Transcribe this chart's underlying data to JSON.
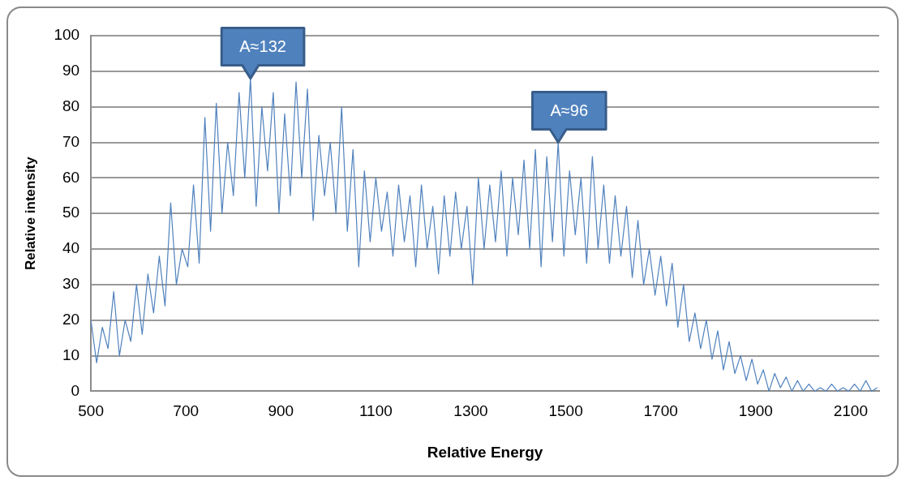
{
  "chart_data": {
    "type": "line",
    "xlabel": "Relative Energy",
    "ylabel": "Relative intensity",
    "xlim": [
      500,
      2160
    ],
    "xticks": [
      500,
      700,
      900,
      1100,
      1300,
      1500,
      1700,
      1900,
      2100
    ],
    "ylim": [
      0,
      100
    ],
    "yticks": [
      0,
      10,
      20,
      30,
      40,
      50,
      60,
      70,
      80,
      90,
      100
    ],
    "grid": "y",
    "legend": false,
    "marker": "none",
    "line_style": "solid",
    "annotations": [
      {
        "text": "A≈132",
        "x": 836,
        "y": 88
      },
      {
        "text": "A≈96",
        "x": 1484,
        "y": 70
      }
    ],
    "series": [
      {
        "color": "#4f81bd",
        "x": [
          500,
          512,
          524,
          536,
          548,
          560,
          572,
          584,
          596,
          608,
          620,
          632,
          644,
          656,
          668,
          680,
          692,
          704,
          716,
          728,
          740,
          752,
          764,
          776,
          788,
          800,
          812,
          824,
          836,
          848,
          860,
          872,
          884,
          896,
          908,
          920,
          932,
          944,
          956,
          968,
          980,
          992,
          1004,
          1016,
          1028,
          1040,
          1052,
          1064,
          1076,
          1088,
          1100,
          1112,
          1124,
          1136,
          1148,
          1160,
          1172,
          1184,
          1196,
          1208,
          1220,
          1232,
          1244,
          1256,
          1268,
          1280,
          1292,
          1304,
          1316,
          1328,
          1340,
          1352,
          1364,
          1376,
          1388,
          1400,
          1412,
          1424,
          1436,
          1448,
          1460,
          1472,
          1484,
          1496,
          1508,
          1520,
          1532,
          1544,
          1556,
          1568,
          1580,
          1592,
          1604,
          1616,
          1628,
          1640,
          1652,
          1664,
          1676,
          1688,
          1700,
          1712,
          1724,
          1736,
          1748,
          1760,
          1772,
          1784,
          1796,
          1808,
          1820,
          1832,
          1844,
          1856,
          1868,
          1880,
          1892,
          1904,
          1916,
          1928,
          1940,
          1952,
          1964,
          1976,
          1988,
          2000,
          2012,
          2024,
          2036,
          2048,
          2060,
          2072,
          2084,
          2096,
          2108,
          2120,
          2132,
          2144,
          2156
        ],
        "values": [
          20,
          8,
          18,
          12,
          28,
          10,
          20,
          14,
          30,
          16,
          33,
          22,
          38,
          24,
          53,
          30,
          40,
          35,
          58,
          36,
          77,
          45,
          81,
          50,
          70,
          55,
          84,
          60,
          88,
          52,
          80,
          62,
          84,
          50,
          78,
          55,
          87,
          60,
          85,
          48,
          72,
          55,
          70,
          50,
          80,
          45,
          68,
          35,
          62,
          42,
          60,
          45,
          56,
          38,
          58,
          42,
          55,
          35,
          58,
          40,
          52,
          33,
          55,
          38,
          56,
          40,
          52,
          30,
          60,
          40,
          58,
          42,
          62,
          38,
          60,
          44,
          65,
          40,
          68,
          35,
          66,
          42,
          70,
          38,
          62,
          44,
          60,
          36,
          66,
          40,
          58,
          36,
          55,
          38,
          52,
          32,
          48,
          30,
          40,
          27,
          38,
          24,
          36,
          18,
          30,
          14,
          22,
          12,
          20,
          9,
          17,
          6,
          14,
          5,
          10,
          3,
          9,
          2,
          6,
          0,
          5,
          1,
          4,
          0,
          3,
          0,
          2,
          0,
          1,
          0,
          2,
          0,
          1,
          0,
          2,
          0,
          3,
          0,
          1
        ]
      }
    ]
  }
}
